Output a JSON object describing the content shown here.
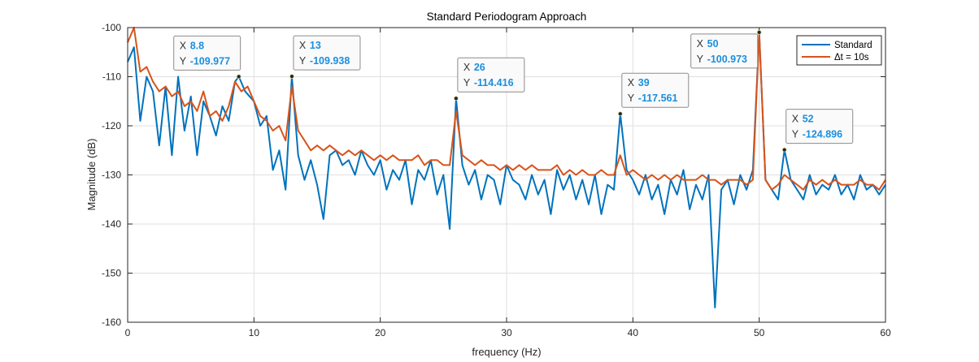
{
  "chart_data": {
    "type": "line",
    "title": "Standard Periodogram Approach",
    "xlabel": "frequency (Hz)",
    "ylabel": "Magnitude (dB)",
    "xlim": [
      0,
      60
    ],
    "ylim": [
      -160,
      -100
    ],
    "xticks": [
      0,
      10,
      20,
      30,
      40,
      50,
      60
    ],
    "yticks": [
      -160,
      -150,
      -140,
      -130,
      -120,
      -110,
      -100
    ],
    "xtick_labels": [
      "0",
      "10",
      "20",
      "30",
      "40",
      "50",
      "60"
    ],
    "ytick_labels": [
      "-160",
      "-150",
      "-140",
      "-130",
      "-120",
      "-110",
      "-100"
    ],
    "grid": true,
    "legend_placement": "top-right",
    "series": [
      {
        "name": "Standard",
        "color": "#0072BD",
        "x": [
          0,
          0.5,
          1,
          1.5,
          2,
          2.5,
          3,
          3.5,
          4,
          4.5,
          5,
          5.5,
          6,
          6.5,
          7,
          7.5,
          8,
          8.5,
          8.8,
          9.3,
          10,
          10.5,
          11,
          11.5,
          12,
          12.5,
          13,
          13.5,
          14,
          14.5,
          15,
          15.5,
          16,
          16.5,
          17,
          17.5,
          18,
          18.5,
          19,
          19.5,
          20,
          20.5,
          21,
          21.5,
          22,
          22.5,
          23,
          23.5,
          24,
          24.5,
          25,
          25.5,
          26,
          26.5,
          27,
          27.5,
          28,
          28.5,
          29,
          29.5,
          30,
          30.5,
          31,
          31.5,
          32,
          32.5,
          33,
          33.5,
          34,
          34.5,
          35,
          35.5,
          36,
          36.5,
          37,
          37.5,
          38,
          38.5,
          39,
          39.5,
          40,
          40.5,
          41,
          41.5,
          42,
          42.5,
          43,
          43.5,
          44,
          44.5,
          45,
          45.5,
          46,
          46.5,
          47,
          47.5,
          48,
          48.5,
          49,
          49.5,
          50,
          50.5,
          51,
          51.5,
          52,
          52.5,
          53,
          53.5,
          54,
          54.5,
          55,
          55.5,
          56,
          56.5,
          57,
          57.5,
          58,
          58.5,
          59,
          59.5,
          60
        ],
        "y": [
          -107,
          -104,
          -119,
          -110,
          -113,
          -124,
          -112,
          -126,
          -110,
          -121,
          -114,
          -126,
          -115,
          -118,
          -122,
          -116,
          -119,
          -111,
          -109.977,
          -113,
          -115,
          -120,
          -118,
          -129,
          -125,
          -133,
          -109.938,
          -126,
          -131,
          -127,
          -132,
          -139,
          -126,
          -125,
          -128,
          -127,
          -130,
          -125,
          -128,
          -130,
          -127,
          -133,
          -129,
          -131,
          -127,
          -136,
          -129,
          -131,
          -127,
          -134,
          -130,
          -141,
          -114.416,
          -128,
          -132,
          -129,
          -135,
          -130,
          -131,
          -136,
          -128,
          -131,
          -132,
          -135,
          -130,
          -134,
          -131,
          -138,
          -129,
          -133,
          -130,
          -135,
          -131,
          -136,
          -130,
          -138,
          -132,
          -133,
          -117.561,
          -129,
          -131,
          -134,
          -130,
          -135,
          -132,
          -138,
          -131,
          -134,
          -129,
          -137,
          -132,
          -135,
          -130,
          -157,
          -133,
          -131,
          -136,
          -130,
          -133,
          -129,
          -100.973,
          -131,
          -133,
          -135,
          -124.896,
          -131,
          -133,
          -135,
          -130,
          -134,
          -132,
          -133,
          -130,
          -134,
          -132,
          -135,
          -130,
          -133,
          -132,
          -134,
          -132
        ]
      },
      {
        "name": "Δt = 10s",
        "color": "#D95319",
        "x": [
          0,
          0.5,
          1,
          1.5,
          2,
          2.5,
          3,
          3.5,
          4,
          4.5,
          5,
          5.5,
          6,
          6.5,
          7,
          7.5,
          8,
          8.5,
          9,
          9.5,
          10,
          10.5,
          11,
          11.5,
          12,
          12.5,
          13,
          13.5,
          14,
          14.5,
          15,
          15.5,
          16,
          16.5,
          17,
          17.5,
          18,
          18.5,
          19,
          19.5,
          20,
          20.5,
          21,
          21.5,
          22,
          22.5,
          23,
          23.5,
          24,
          24.5,
          25,
          25.5,
          26,
          26.5,
          27,
          27.5,
          28,
          28.5,
          29,
          29.5,
          30,
          30.5,
          31,
          31.5,
          32,
          32.5,
          33,
          33.5,
          34,
          34.5,
          35,
          35.5,
          36,
          36.5,
          37,
          37.5,
          38,
          38.5,
          39,
          39.5,
          40,
          40.5,
          41,
          41.5,
          42,
          42.5,
          43,
          43.5,
          44,
          44.5,
          45,
          45.5,
          46,
          46.5,
          47,
          47.5,
          48,
          48.5,
          49,
          49.5,
          50,
          50.5,
          51,
          51.5,
          52,
          52.5,
          53,
          53.5,
          54,
          54.5,
          55,
          55.5,
          56,
          56.5,
          57,
          57.5,
          58,
          58.5,
          59,
          59.5,
          60
        ],
        "y": [
          -103,
          -100,
          -109,
          -108,
          -111,
          -113,
          -112,
          -114,
          -113,
          -116,
          -115,
          -117,
          -113,
          -118,
          -117,
          -119,
          -116,
          -111,
          -113,
          -112,
          -115,
          -118,
          -119,
          -121,
          -120,
          -123,
          -112,
          -121,
          -123,
          -125,
          -124,
          -125,
          -124,
          -125,
          -126,
          -125,
          -126,
          -125,
          -126,
          -127,
          -126,
          -127,
          -126,
          -127,
          -127,
          -127,
          -126,
          -128,
          -127,
          -127,
          -128,
          -128,
          -117,
          -126,
          -127,
          -128,
          -127,
          -128,
          -128,
          -129,
          -128,
          -129,
          -128,
          -129,
          -128,
          -129,
          -129,
          -129,
          -128,
          -130,
          -129,
          -130,
          -129,
          -130,
          -130,
          -129,
          -130,
          -130,
          -126,
          -130,
          -129,
          -130,
          -131,
          -130,
          -131,
          -130,
          -131,
          -130,
          -131,
          -131,
          -131,
          -130,
          -131,
          -131,
          -132,
          -131,
          -131,
          -131,
          -132,
          -131,
          -101,
          -131,
          -133,
          -132,
          -130,
          -131,
          -132,
          -133,
          -131,
          -132,
          -131,
          -132,
          -131,
          -132,
          -132,
          -132,
          -131,
          -132,
          -132,
          -133,
          -131
        ]
      }
    ],
    "datatips": [
      {
        "x_key": "X",
        "x_val": "8.8",
        "y_key": "Y",
        "y_val": "-109.977",
        "x": 8.8,
        "y": -109.977
      },
      {
        "x_key": "X",
        "x_val": "13",
        "y_key": "Y",
        "y_val": "-109.938",
        "x": 13,
        "y": -109.938
      },
      {
        "x_key": "X",
        "x_val": "26",
        "y_key": "Y",
        "y_val": "-114.416",
        "x": 26,
        "y": -114.416
      },
      {
        "x_key": "X",
        "x_val": "39",
        "y_key": "Y",
        "y_val": "-117.561",
        "x": 39,
        "y": -117.561
      },
      {
        "x_key": "X",
        "x_val": "50",
        "y_key": "Y",
        "y_val": "-100.973",
        "x": 50,
        "y": -100.973
      },
      {
        "x_key": "X",
        "x_val": "52",
        "y_key": "Y",
        "y_val": "-124.896",
        "x": 52,
        "y": -124.896
      }
    ]
  }
}
